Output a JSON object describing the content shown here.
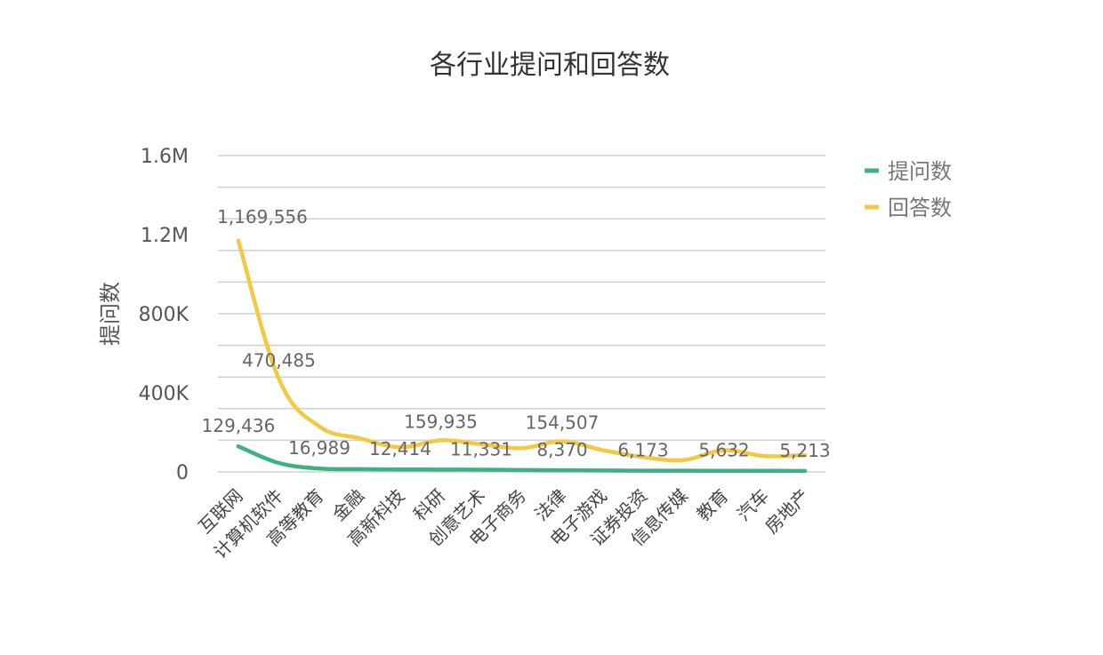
{
  "chart_data": {
    "type": "line",
    "title": "各行业提问和回答数",
    "ylabel": "提问数",
    "xlabel": "",
    "ylim": [
      0,
      1600000
    ],
    "yticks": [
      {
        "value": 0,
        "label": "0"
      },
      {
        "value": 400000,
        "label": "400K"
      },
      {
        "value": 800000,
        "label": "800K"
      },
      {
        "value": 1200000,
        "label": "1.2M"
      },
      {
        "value": 1600000,
        "label": "1.6M"
      }
    ],
    "grid": true,
    "legend_position": "right",
    "categories": [
      "互联网",
      "计算机软件",
      "高等教育",
      "金融",
      "高新科技",
      "科研",
      "创意艺术",
      "电子商务",
      "法律",
      "电子游戏",
      "证券投资",
      "信息传媒",
      "教育",
      "汽车",
      "房地产"
    ],
    "series": [
      {
        "name": "提问数",
        "color": "#3cb27f",
        "values": [
          129436,
          45000,
          16989,
          14000,
          12414,
          12000,
          11331,
          9500,
          8370,
          7500,
          6173,
          6000,
          5632,
          5400,
          5213
        ],
        "labels": [
          "129,436",
          "",
          "16,989",
          "",
          "12,414",
          "",
          "11,331",
          "",
          "8,370",
          "",
          "6,173",
          "",
          "5,632",
          "",
          "5,213"
        ]
      },
      {
        "name": "回答数",
        "color": "#f5c842",
        "values": [
          1169556,
          470485,
          230000,
          170000,
          125000,
          159935,
          140000,
          120000,
          154507,
          110000,
          75000,
          60000,
          110000,
          80000,
          85000
        ],
        "labels": [
          "1,169,556",
          "470,485",
          "",
          "",
          "",
          "159,935",
          "",
          "",
          "154,507",
          "",
          "",
          "",
          "",
          "",
          ""
        ]
      }
    ]
  }
}
